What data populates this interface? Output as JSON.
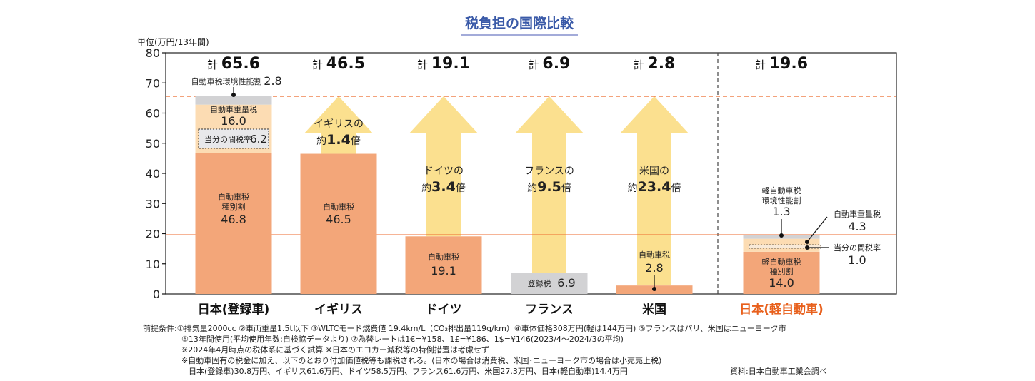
{
  "chart_data": {
    "type": "bar",
    "stacked": true,
    "title": "税負担の国際比較",
    "unit_label": "単位(万円/13年間)",
    "ylim": [
      0,
      80
    ],
    "yticks": [
      "0",
      "10",
      "20",
      "30",
      "40",
      "50",
      "60",
      "70",
      "80"
    ],
    "grid": false,
    "reference_lines": [
      {
        "value": 65.6,
        "style": "dashed",
        "color": "#ec6a2c"
      },
      {
        "value": 19.6,
        "style": "solid",
        "color": "#ec6a2c"
      }
    ],
    "categories": [
      "日本(登録車)",
      "イギリス",
      "ドイツ",
      "フランス",
      "米国",
      "日本(軽自動車)"
    ],
    "total_prefix": "計",
    "totals": [
      "65.6",
      "46.5",
      "19.1",
      "6.9",
      "2.8",
      "19.6"
    ],
    "bars": [
      {
        "segments": [
          {
            "name": "自動車税 種別割",
            "lines": [
              "自動車税",
              "種別割"
            ],
            "value": 46.8,
            "color": "#f3a679"
          },
          {
            "name": "自動車重量税",
            "lines": [
              "自動車重量税"
            ],
            "value": 16.0,
            "color": "#fcdcb3",
            "sub": {
              "name": "当分の間税率",
              "value": 6.2
            }
          },
          {
            "name": "自動車税環境性能割",
            "lines": [
              "自動車税環境性能割"
            ],
            "value": 2.8,
            "color": "#d2d2d4"
          }
        ]
      },
      {
        "segments": [
          {
            "name": "自動車税",
            "lines": [
              "自動車税"
            ],
            "value": 46.5,
            "color": "#f3a679"
          }
        ],
        "arrow": {
          "line1": "イギリスの",
          "prefix": "約",
          "multiplier": "1.4",
          "suffix": "倍"
        }
      },
      {
        "segments": [
          {
            "name": "自動車税",
            "lines": [
              "自動車税"
            ],
            "value": 19.1,
            "color": "#f3a679"
          }
        ],
        "arrow": {
          "line1": "ドイツの",
          "prefix": "約",
          "multiplier": "3.4",
          "suffix": "倍"
        }
      },
      {
        "segments": [
          {
            "name": "登録税",
            "lines": [
              "登録税"
            ],
            "value": 6.9,
            "color": "#d2d2d4"
          }
        ],
        "arrow": {
          "line1": "フランスの",
          "prefix": "約",
          "multiplier": "9.5",
          "suffix": "倍"
        }
      },
      {
        "segments": [
          {
            "name": "自動車税",
            "lines": [
              "自動車税"
            ],
            "value": 2.8,
            "color": "#f3a679"
          }
        ],
        "arrow": {
          "line1": "米国の",
          "prefix": "約",
          "multiplier": "23.4",
          "suffix": "倍"
        }
      },
      {
        "segments": [
          {
            "name": "軽自動車税 種別割",
            "lines": [
              "軽自動車税",
              "種別割"
            ],
            "value": 14.0,
            "color": "#f3a679"
          },
          {
            "name": "自動車重量税",
            "lines": [
              "自動車重量税"
            ],
            "value": 4.3,
            "color": "#fcdcb3",
            "sub": {
              "name": "当分の間税率",
              "value": 1.0
            }
          },
          {
            "name": "軽自動車税 環境性能割",
            "lines": [
              "軽自動車税",
              "環境性能割"
            ],
            "value": 1.3,
            "color": "#d2d2d4"
          }
        ]
      }
    ]
  },
  "colors": {
    "title": "#3a5aa8",
    "title_underline": "#a3abd9",
    "arrow": "#fbe08f",
    "highlight_category": "#e8601c"
  },
  "footnotes": {
    "lines": [
      "前提条件:①排気量2000cc ②車両重量1.5t以下 ③WLTCモード燃費値 19.4km/L（CO₂排出量119g/km）④車体価格308万円(軽は144万円) ⑤フランスはパリ、米国はニューヨーク市",
      "⑥13年間使用(平均使用年数:自検協データより) ⑦為替レートは1€=¥158、1£=¥186、1$=¥146(2023/4～2024/3の平均)",
      "※2024年4月時点の税体系に基づく試算 ※日本のエコカー減税等の特例措置は考慮せず",
      "※自動車固有の税金に加え、以下のとおり付加価値税等も課税される。(日本の場合は消費税、米国･ニューヨーク市の場合は小売売上税)",
      "日本(登録車)30.8万円、イギリス61.6万円、ドイツ58.5万円、フランス61.6万円、米国27.3万円、日本(軽自動車)14.4万円"
    ],
    "source": "資料:日本自動車工業会調べ"
  }
}
